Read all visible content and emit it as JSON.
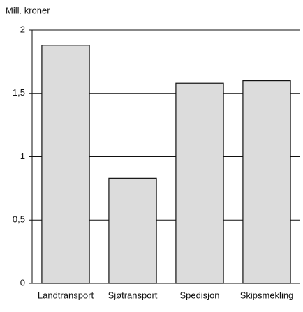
{
  "chart_data": {
    "type": "bar",
    "y_label": "Mill. kroner",
    "categories": [
      "Landtransport",
      "Sjøtransport",
      "Spedisjon",
      "Skipsmekling"
    ],
    "values": [
      1.88,
      0.83,
      1.58,
      1.6
    ],
    "color": "#dcdcdc",
    "ylim": [
      0,
      2
    ],
    "yticks": [
      0,
      {
        "value": 0.5,
        "label": "0,5"
      },
      1,
      {
        "value": 1.5,
        "label": "1,5"
      },
      2
    ],
    "grid": true
  }
}
